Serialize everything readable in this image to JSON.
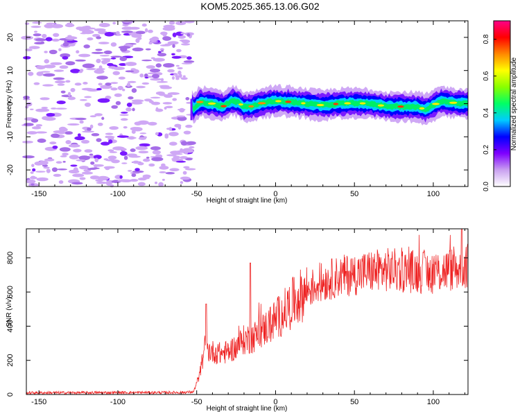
{
  "title": "KOM5.2025.365.13.06.G02",
  "chart_data": [
    {
      "type": "heatmap",
      "name": "spectrogram",
      "xlabel": "Height of straight line (km)",
      "ylabel": "Frequency (Hz)",
      "xlim": [
        -158,
        122
      ],
      "ylim": [
        -25,
        25
      ],
      "xticks": [
        -150,
        -100,
        -50,
        0,
        50,
        100
      ],
      "yticks": [
        -20,
        -10,
        0,
        10,
        20
      ],
      "colorbar": {
        "label": "Normalized spectral amplitude",
        "ticks": [
          0.0,
          0.2,
          0.4,
          0.6,
          0.8
        ],
        "tick_labels": [
          "0.0",
          "0.2",
          "0.4",
          "0.6",
          "0.8"
        ],
        "range": [
          0,
          0.9
        ],
        "colors": [
          "#ffffff",
          "#c9a0f0",
          "#7f00ff",
          "#0000ff",
          "#00ccff",
          "#00ff66",
          "#88ff00",
          "#ffff00",
          "#ff8800",
          "#ff0000",
          "#ff0088"
        ]
      },
      "noise_region_x": [
        -158,
        -53
      ],
      "signal_region_x": [
        -53,
        122
      ],
      "signal_center_hz": [
        [
          -52,
          -1.5
        ],
        [
          -48,
          0.5
        ],
        [
          -40,
          0
        ],
        [
          -33,
          -0.8
        ],
        [
          -28,
          0.8
        ],
        [
          -24,
          0.5
        ],
        [
          -20,
          -1.0
        ],
        [
          -15,
          -0.8
        ],
        [
          -10,
          0
        ],
        [
          -5,
          0.5
        ],
        [
          0,
          0.8
        ],
        [
          10,
          0.5
        ],
        [
          20,
          0
        ],
        [
          30,
          -0.5
        ],
        [
          40,
          0
        ],
        [
          50,
          0.2
        ],
        [
          60,
          0
        ],
        [
          70,
          -0.8
        ],
        [
          80,
          -0.9
        ],
        [
          90,
          -1.0
        ],
        [
          95,
          -1.8
        ],
        [
          100,
          -0.5
        ],
        [
          105,
          0.8
        ],
        [
          112,
          0.3
        ],
        [
          120,
          0
        ]
      ]
    },
    {
      "type": "line",
      "name": "snr",
      "xlabel": "Height of straight line (km)",
      "ylabel": "SNR (v/v)",
      "xlim": [
        -158,
        122
      ],
      "ylim": [
        0,
        970
      ],
      "xticks": [
        -150,
        -100,
        -50,
        0,
        50,
        100
      ],
      "yticks": [
        0,
        200,
        400,
        600,
        800
      ],
      "color": "#ee2222",
      "trend": [
        [
          -158,
          10
        ],
        [
          -60,
          12
        ],
        [
          -52,
          15
        ],
        [
          -48,
          120
        ],
        [
          -45,
          270
        ],
        [
          -40,
          250
        ],
        [
          -35,
          240
        ],
        [
          -30,
          250
        ],
        [
          -25,
          280
        ],
        [
          -20,
          320
        ],
        [
          -15,
          330
        ],
        [
          -10,
          360
        ],
        [
          -5,
          400
        ],
        [
          0,
          440
        ],
        [
          5,
          480
        ],
        [
          10,
          530
        ],
        [
          15,
          570
        ],
        [
          20,
          610
        ],
        [
          30,
          660
        ],
        [
          40,
          690
        ],
        [
          50,
          705
        ],
        [
          60,
          720
        ],
        [
          70,
          730
        ],
        [
          80,
          725
        ],
        [
          90,
          720
        ],
        [
          100,
          715
        ],
        [
          110,
          730
        ],
        [
          122,
          745
        ]
      ],
      "spikes": [
        [
          -44,
          530
        ],
        [
          -16,
          770
        ],
        [
          118,
          970
        ],
        [
          122,
          880
        ],
        [
          95,
          800
        ]
      ]
    }
  ]
}
